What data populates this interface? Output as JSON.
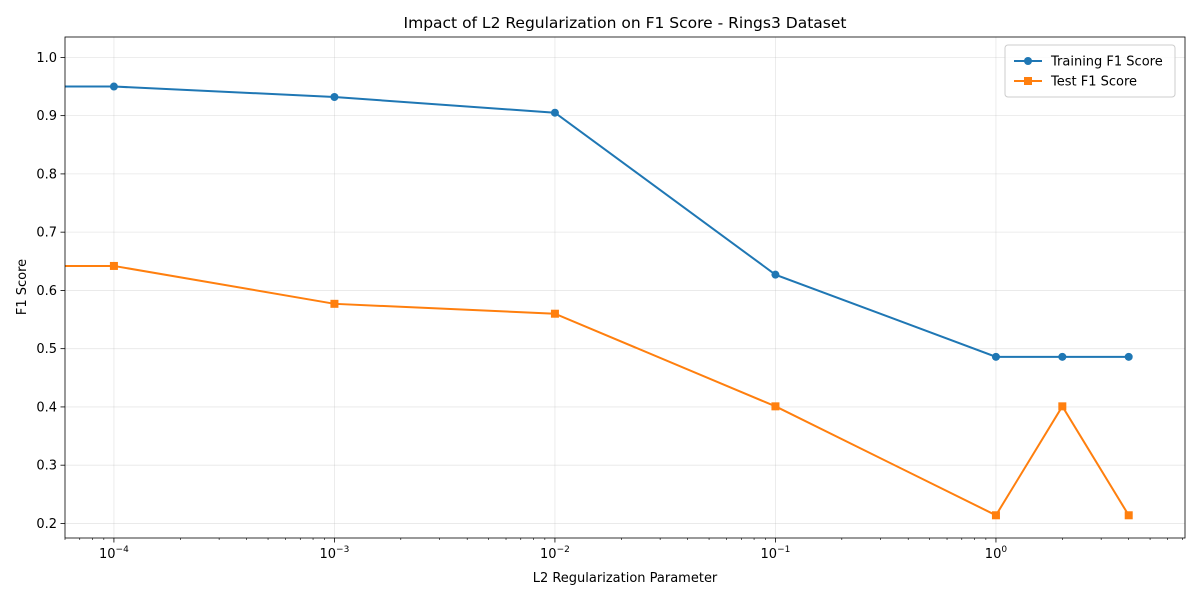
{
  "chart_data": {
    "type": "line",
    "title": "Impact of L2 Regularization on F1 Score - Rings3 Dataset",
    "xlabel": "L2 Regularization Parameter",
    "ylabel": "F1 Score",
    "xscale": "log",
    "xlim": [
      6e-05,
      7.2
    ],
    "ylim": [
      0.175,
      1.035
    ],
    "grid": true,
    "legend_position": "top-right",
    "x": [
      0,
      0.0001,
      0.001,
      0.01,
      0.1,
      1,
      2,
      4
    ],
    "series": [
      {
        "name": "Training F1 Score",
        "color": "#1f77b4",
        "marker": "circle",
        "values": [
          0.95,
          0.95,
          0.932,
          0.905,
          0.627,
          0.486,
          0.486,
          0.486
        ]
      },
      {
        "name": "Test F1 Score",
        "color": "#ff7f0e",
        "marker": "square",
        "values": [
          0.642,
          0.642,
          0.577,
          0.56,
          0.401,
          0.214,
          0.401,
          0.214
        ]
      }
    ],
    "x_ticks": [
      {
        "value": 0.0001,
        "base": "10",
        "exp": "−4"
      },
      {
        "value": 0.001,
        "base": "10",
        "exp": "−3"
      },
      {
        "value": 0.01,
        "base": "10",
        "exp": "−2"
      },
      {
        "value": 0.1,
        "base": "10",
        "exp": "−1"
      },
      {
        "value": 1,
        "base": "10",
        "exp": "0"
      }
    ],
    "y_ticks": [
      "0.2",
      "0.3",
      "0.4",
      "0.5",
      "0.6",
      "0.7",
      "0.8",
      "0.9",
      "1.0"
    ]
  }
}
